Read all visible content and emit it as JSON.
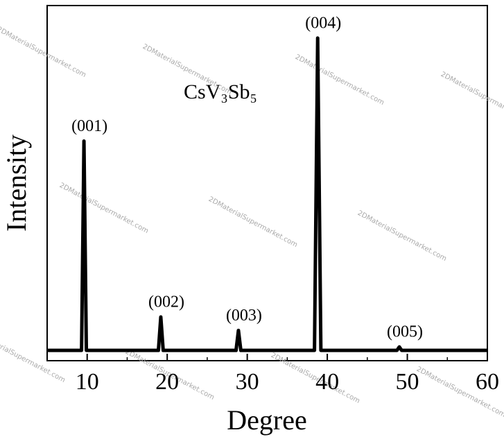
{
  "chart_data": {
    "type": "line",
    "x_label": "Degree",
    "y_label": "Intensity",
    "annotation": "CsV₃Sb₅",
    "watermark": "2DMaterialSupermarket.com",
    "x": [
      5,
      9.3,
      9.6,
      9.9,
      18.9,
      19.2,
      19.5,
      28.6,
      28.9,
      29.2,
      38.4,
      38.8,
      39.2,
      48.7,
      49.0,
      49.3,
      60
    ],
    "values": [
      0,
      0,
      67,
      0,
      0,
      10.7,
      0,
      0,
      6.4,
      0,
      0,
      100,
      0,
      0,
      1.1,
      0,
      0
    ],
    "peak_labels": [
      "(001)",
      "(002)",
      "(003)",
      "(004)",
      "(005)"
    ],
    "color": "#000000",
    "xlim": [
      5,
      60
    ],
    "ylim": [
      -3.3,
      110.4
    ],
    "xticks": [
      10,
      20,
      30,
      40,
      50,
      60
    ],
    "xminor_ticks": [
      15,
      25,
      35,
      45,
      55
    ]
  }
}
